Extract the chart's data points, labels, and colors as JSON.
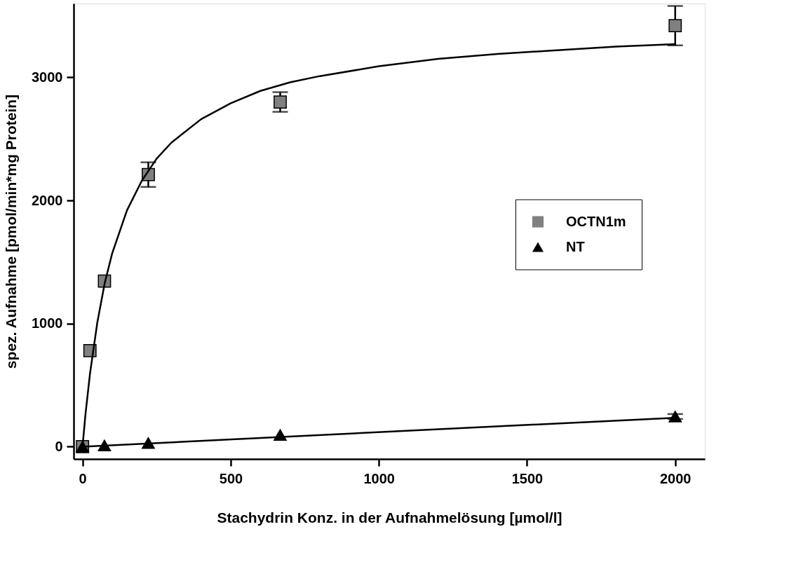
{
  "chart_data": {
    "type": "scatter",
    "xlabel": "Stachydrin Konz. in der Aufnahmelösung [µmol/l]",
    "ylabel": "spez. Aufnahme [pmol/min*mg Protein]",
    "xlim": [
      -30,
      2100
    ],
    "ylim": [
      -100,
      3600
    ],
    "xticks": [
      0,
      500,
      1000,
      1500,
      2000
    ],
    "yticks": [
      0,
      1000,
      2000,
      3000
    ],
    "grid": false,
    "legend": "right",
    "series": [
      {
        "name": "OCTN1m",
        "marker": "square",
        "color": "#808080",
        "x": [
          0,
          25,
          74,
          222,
          667,
          2000
        ],
        "values": [
          0,
          780,
          1345,
          2210,
          2800,
          3420
        ],
        "errors": [
          null,
          null,
          null,
          100,
          80,
          160
        ]
      },
      {
        "name": "NT",
        "marker": "triangle",
        "color": "#000000",
        "x": [
          0,
          74,
          222,
          667,
          2000
        ],
        "values": [
          0,
          10,
          30,
          95,
          245
        ],
        "errors": [
          null,
          null,
          null,
          null,
          20
        ]
      },
      {
        "type": "line",
        "marker": "none",
        "line_style": "solid",
        "color": "#000000",
        "x": [
          0,
          10,
          25,
          50,
          75,
          100,
          150,
          200,
          250,
          300,
          400,
          500,
          600,
          700,
          800,
          1000,
          1200,
          1400,
          1600,
          1800,
          2000
        ],
        "values": [
          0,
          265,
          590,
          1010,
          1330,
          1570,
          1920,
          2160,
          2340,
          2470,
          2660,
          2790,
          2890,
          2960,
          3010,
          3090,
          3150,
          3190,
          3220,
          3250,
          3270
        ]
      },
      {
        "type": "line",
        "marker": "none",
        "line_style": "solid",
        "color": "#000000",
        "x": [
          0,
          2000
        ],
        "values": [
          0,
          235
        ]
      }
    ]
  }
}
